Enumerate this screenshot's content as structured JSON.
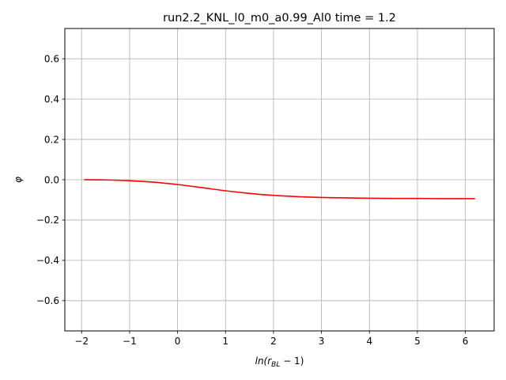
{
  "chart_data": {
    "type": "line",
    "title": "run2.2_KNL_l0_m0_a0.99_Al0 time = 1.2",
    "xlabel": "ln(r",
    "xlabel_sub": "BL",
    "xlabel_tail": " − 1)",
    "ylabel": "φ",
    "xlim": [
      -2.35,
      6.6
    ],
    "ylim": [
      -0.75,
      0.75
    ],
    "xticks": [
      -2,
      -1,
      0,
      1,
      2,
      3,
      4,
      5,
      6
    ],
    "yticks": [
      -0.6,
      -0.4,
      -0.2,
      0.0,
      0.2,
      0.4,
      0.6
    ],
    "xtick_labels": [
      "−2",
      "−1",
      "0",
      "1",
      "2",
      "3",
      "4",
      "5",
      "6"
    ],
    "ytick_labels": [
      "−0.6",
      "−0.4",
      "−0.2",
      "0.0",
      "0.2",
      "0.4",
      "0.6"
    ],
    "grid": true,
    "legend": "none",
    "series": [
      {
        "color": "#ff0000",
        "x": [
          -1.95,
          -1.5,
          -1.0,
          -0.5,
          0.0,
          0.5,
          1.0,
          1.5,
          2.0,
          2.5,
          3.0,
          3.5,
          4.0,
          4.5,
          5.0,
          5.5,
          6.2
        ],
        "y": [
          0.0,
          -0.001,
          -0.005,
          -0.012,
          -0.024,
          -0.039,
          -0.055,
          -0.068,
          -0.078,
          -0.084,
          -0.088,
          -0.09,
          -0.092,
          -0.093,
          -0.093,
          -0.094,
          -0.094
        ]
      }
    ]
  }
}
